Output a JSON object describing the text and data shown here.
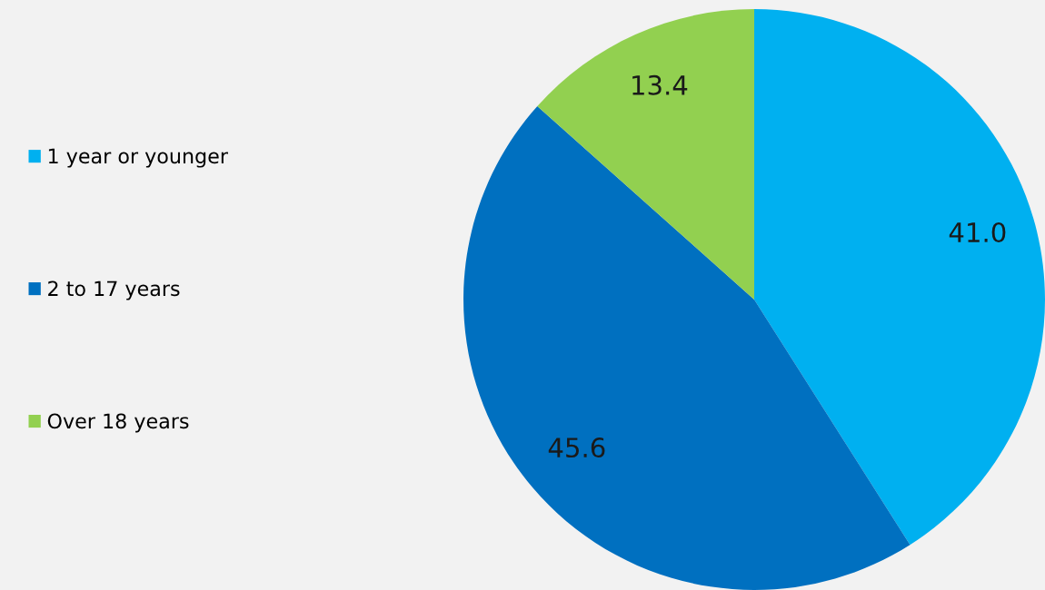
{
  "chart_data": {
    "type": "pie",
    "categories": [
      "1 year or younger",
      "2 to 17 years",
      "Over 18 years"
    ],
    "values": [
      41.0,
      45.6,
      13.4
    ],
    "value_labels": [
      "41.0",
      "45.6",
      "13.4"
    ],
    "colors": [
      "#00b0f0",
      "#0070c0",
      "#92d050"
    ],
    "legend": "left"
  }
}
